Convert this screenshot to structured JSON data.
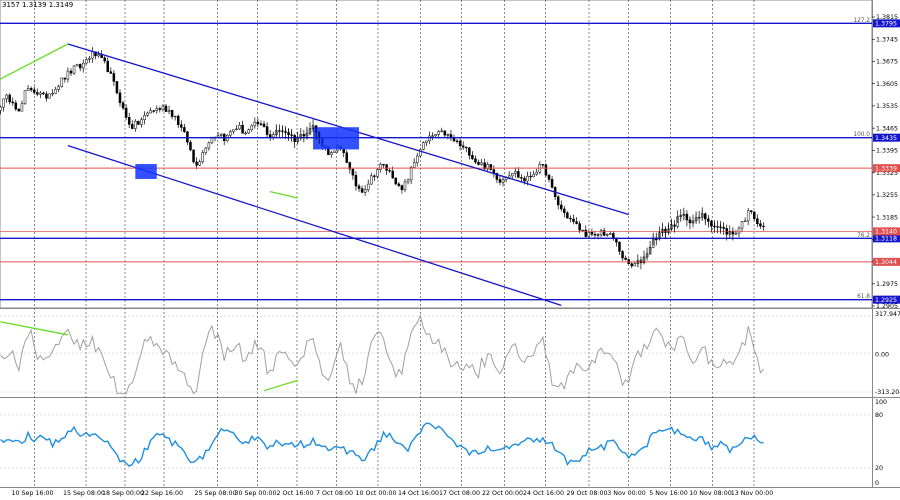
{
  "header": {
    "ohlc_text": "3157 1.3139 1.3149"
  },
  "chart_data": {
    "type": "candlestick",
    "colors": {
      "channel": "#1515cc",
      "level": "#1515cc",
      "resistance_red": "#e05050",
      "divergence": "#66dd22",
      "box": "#1133ff",
      "oscillator": "#a0a0a0",
      "rsi": "#1e8fe0",
      "candle": "#000000",
      "grid": "#555555"
    },
    "x_labels": [
      "10 Sep 16:00",
      "15 Sep 08:00",
      "18 Sep 00:00",
      "22 Sep 16:00",
      "25 Sep 08:00",
      "30 Sep 00:00",
      "2 Oct 16:00",
      "7 Oct 08:00",
      "10 Oct 00:00",
      "14 Oct 16:00",
      "17 Oct 08:00",
      "22 Oct 00:00",
      "24 Oct 16:00",
      "29 Oct 08:00",
      "3 Nov 00:00",
      "5 Nov 16:00",
      "10 Nov 08:00",
      "13 Nov 00:00"
    ],
    "price_axis": {
      "ylim": [
        1.2905,
        1.3815
      ],
      "ticks": [
        "1.3815",
        "1.3745",
        "1.3675",
        "1.3605",
        "1.3535",
        "1.3465",
        "1.3395",
        "1.3325",
        "1.3255",
        "1.3185",
        "1.3115",
        "1.3045",
        "1.2975",
        "1.2905"
      ]
    },
    "levels": [
      {
        "price": 1.3795,
        "fib": "127.2",
        "label": "1.3795",
        "color": "blue"
      },
      {
        "price": 1.3435,
        "fib": "100.0",
        "label": "1.3435",
        "color": "blue"
      },
      {
        "price": 1.3339,
        "fib": "",
        "label": "1.3339",
        "color": "red"
      },
      {
        "price": 1.3118,
        "fib": "76.2",
        "label": "1.3118",
        "color": "blue"
      },
      {
        "price": 1.3044,
        "fib": "",
        "label": "1.3044",
        "color": "red"
      },
      {
        "price": 1.2925,
        "fib": "61.8",
        "label": "1.2925",
        "color": "blue"
      }
    ],
    "current_price": {
      "price": 1.314,
      "label": "1.3140"
    },
    "closes": [
      1.354,
      1.356,
      1.3555,
      1.351,
      1.358,
      1.359,
      1.3575,
      1.356,
      1.358,
      1.3595,
      1.362,
      1.364,
      1.3655,
      1.366,
      1.369,
      1.37,
      1.368,
      1.366,
      1.361,
      1.356,
      1.35,
      1.347,
      1.348,
      1.35,
      1.352,
      1.3525,
      1.353,
      1.352,
      1.35,
      1.346,
      1.342,
      1.335,
      1.337,
      1.342,
      1.344,
      1.345,
      1.343,
      1.346,
      1.347,
      1.345,
      1.346,
      1.348,
      1.347,
      1.344,
      1.345,
      1.346,
      1.345,
      1.343,
      1.344,
      1.346,
      1.347,
      1.343,
      1.34,
      1.338,
      1.34,
      1.339,
      1.332,
      1.328,
      1.327,
      1.33,
      1.333,
      1.335,
      1.333,
      1.331,
      1.326,
      1.33,
      1.335,
      1.34,
      1.342,
      1.344,
      1.3445,
      1.345,
      1.343,
      1.342,
      1.34,
      1.339,
      1.336,
      1.335,
      1.334,
      1.332,
      1.33,
      1.332,
      1.333,
      1.331,
      1.33,
      1.332,
      1.334,
      1.334,
      1.328,
      1.323,
      1.32,
      1.318,
      1.316,
      1.314,
      1.313,
      1.312,
      1.314,
      1.313,
      1.312,
      1.308,
      1.304,
      1.303,
      1.304,
      1.306,
      1.31,
      1.313,
      1.314,
      1.315,
      1.317,
      1.319,
      1.318,
      1.317,
      1.319,
      1.318,
      1.316,
      1.315,
      1.314,
      1.313,
      1.315,
      1.318,
      1.321,
      1.317,
      1.3149
    ],
    "channel": {
      "upper": [
        {
          "i": 22,
          "p": 1.373
        },
        {
          "i": 205,
          "p": 1.3193
        }
      ],
      "lower": [
        {
          "i": 22,
          "p": 1.341
        },
        {
          "i": 183,
          "p": 1.2907
        }
      ]
    },
    "divergence_price": [
      [
        {
          "i": 0,
          "p": 1.362
        },
        {
          "i": 22,
          "p": 1.373
        }
      ],
      [
        {
          "i": 88,
          "p": 1.3265
        },
        {
          "i": 97,
          "p": 1.3245
        }
      ]
    ],
    "boxes": [
      {
        "i0": 44,
        "i1": 51,
        "p0": 1.3352,
        "p1": 1.3305
      },
      {
        "i0": 102,
        "i1": 117,
        "p0": 1.3468,
        "p1": 1.3398
      }
    ],
    "oscillator": {
      "ticks": [
        "317.9471",
        "0.00",
        "-313.204"
      ],
      "ylim": [
        -313.204,
        317.9471
      ],
      "divergence": [
        [
          {
            "i": 0,
            "v": 250
          },
          {
            "i": 22,
            "v": 150
          }
        ],
        [
          {
            "i": 86,
            "v": -280
          },
          {
            "i": 97,
            "v": -200
          }
        ]
      ]
    },
    "rsi": {
      "ticks": [
        "100",
        "80",
        "20",
        "0"
      ],
      "ylim": [
        0,
        100
      ]
    }
  }
}
